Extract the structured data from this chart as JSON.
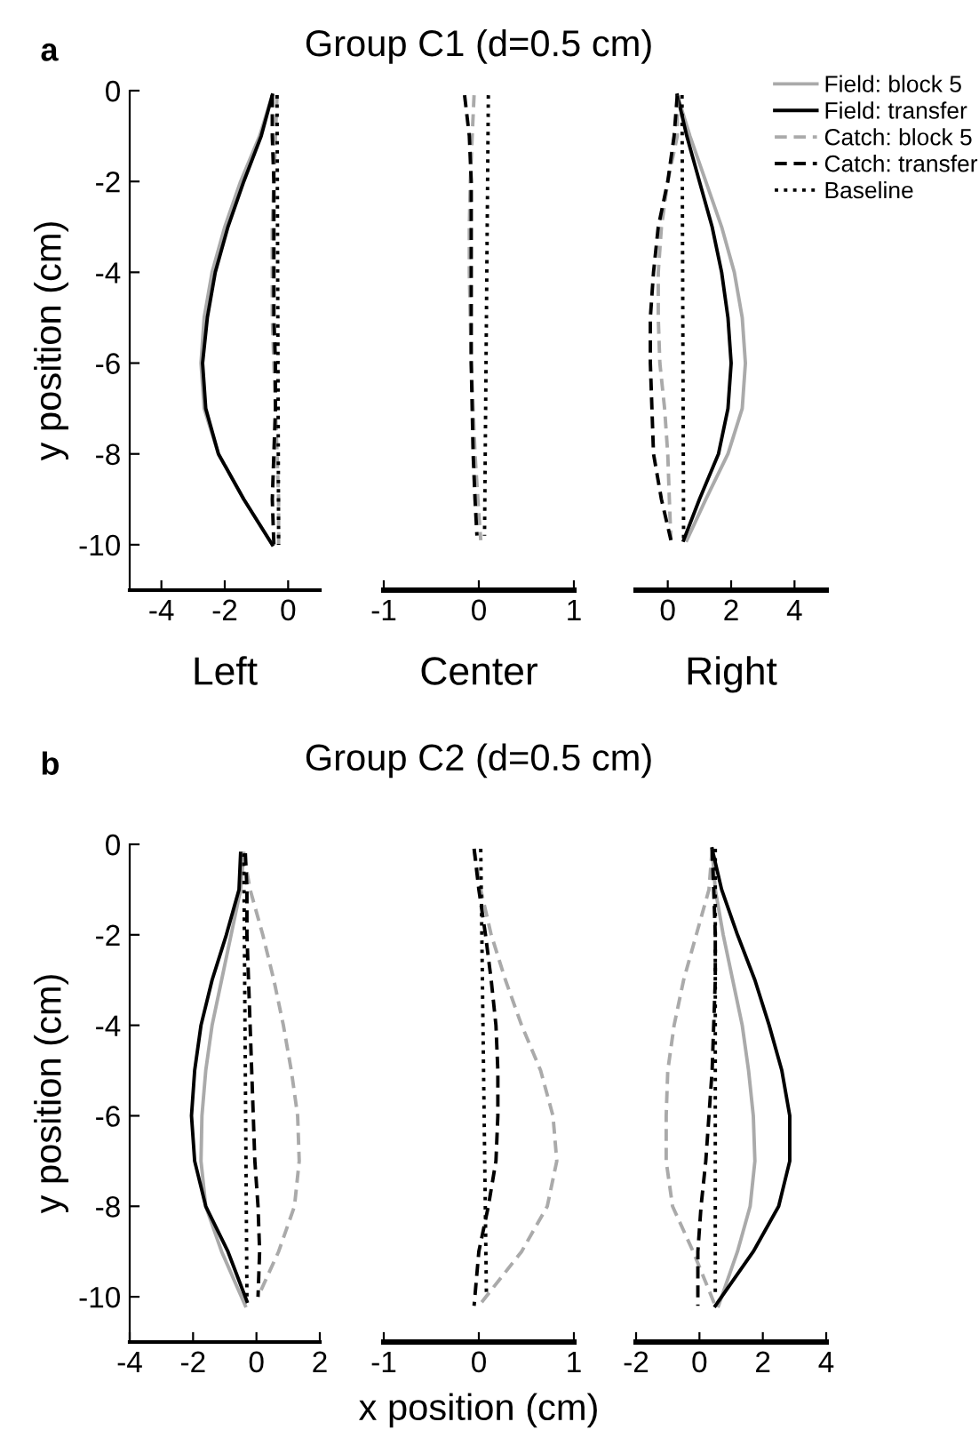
{
  "chart_data": [
    {
      "type": "line",
      "xlabel": "Left",
      "ylabel": "y position (cm)",
      "annotations": [
        "a"
      ],
      "xlim": [
        -5,
        1
      ],
      "xticks": [
        -4,
        -2,
        0
      ],
      "ylim": [
        -11,
        0
      ],
      "yticks": [
        0,
        -2,
        -4,
        -6,
        -8,
        -10
      ],
      "grid": false,
      "legend": false,
      "marker": "none",
      "series": [
        {
          "color": "#aaaaaa",
          "line_style": "solid",
          "x": [
            -0.5,
            -0.9,
            -1.5,
            -2.0,
            -2.4,
            -2.65,
            -2.75,
            -2.65,
            -2.2,
            -1.4,
            -0.5
          ],
          "values": [
            -0.1,
            -1,
            -2,
            -3,
            -4,
            -5,
            -6,
            -7,
            -8,
            -9,
            -10
          ]
        },
        {
          "color": "#000000",
          "line_style": "solid",
          "x": [
            -0.5,
            -0.85,
            -1.4,
            -1.9,
            -2.3,
            -2.55,
            -2.7,
            -2.6,
            -2.2,
            -1.4,
            -0.5
          ],
          "values": [
            -0.1,
            -1,
            -2,
            -3,
            -4,
            -5,
            -6,
            -7,
            -8,
            -9,
            -10
          ]
        },
        {
          "color": "#aaaaaa",
          "line_style": "dashed",
          "x": [
            -0.35,
            -0.4,
            -0.45,
            -0.5,
            -0.5,
            -0.5,
            -0.45,
            -0.4,
            -0.35,
            -0.3,
            -0.3
          ],
          "values": [
            -0.1,
            -1,
            -2,
            -3,
            -4,
            -5,
            -6,
            -7,
            -8,
            -9,
            -10
          ]
        },
        {
          "color": "#000000",
          "line_style": "dashed",
          "x": [
            -0.5,
            -0.5,
            -0.45,
            -0.45,
            -0.45,
            -0.45,
            -0.4,
            -0.4,
            -0.45,
            -0.5,
            -0.45
          ],
          "values": [
            -0.1,
            -1,
            -2,
            -3,
            -4,
            -5,
            -6,
            -7,
            -8,
            -9,
            -10
          ]
        },
        {
          "color": "#000000",
          "line_style": "dotted",
          "x": [
            -0.35,
            -0.3
          ],
          "values": [
            -0.1,
            -10
          ]
        }
      ]
    },
    {
      "type": "line",
      "title": "Group C1 (d=0.5 cm)",
      "xlabel": "Center",
      "xlim": [
        -1,
        1
      ],
      "xticks": [
        -1,
        0,
        1
      ],
      "ylim": [
        -11,
        0
      ],
      "tick_labels": "x",
      "grid": false,
      "legend": false,
      "marker": "none",
      "series": [
        {
          "color": "#aaaaaa",
          "line_style": "dashed",
          "x": [
            -0.05,
            -0.07,
            -0.09,
            -0.1,
            -0.1,
            -0.09,
            -0.08,
            -0.06,
            -0.04,
            -0.01,
            0.02
          ],
          "values": [
            -0.1,
            -1,
            -2,
            -3,
            -4,
            -5,
            -6,
            -7,
            -8,
            -9,
            -9.9
          ]
        },
        {
          "color": "#000000",
          "line_style": "dashed",
          "x": [
            -0.15,
            -0.1,
            -0.08,
            -0.08,
            -0.08,
            -0.08,
            -0.08,
            -0.07,
            -0.06,
            -0.04,
            -0.02
          ],
          "values": [
            -0.1,
            -1,
            -2,
            -3,
            -4,
            -5,
            -6,
            -7,
            -8,
            -9,
            -9.8
          ]
        },
        {
          "color": "#000000",
          "line_style": "dotted",
          "x": [
            0.1,
            0.06
          ],
          "values": [
            -0.1,
            -9.8
          ]
        }
      ]
    },
    {
      "type": "line",
      "xlabel": "Right",
      "xlim": [
        -1,
        5
      ],
      "xticks": [
        0,
        2,
        4
      ],
      "ylim": [
        -11,
        0
      ],
      "tick_labels": "x",
      "grid": false,
      "legend": "top right",
      "marker": "none",
      "series": [
        {
          "name": "Field: block 5",
          "color": "#aaaaaa",
          "line_style": "solid",
          "x": [
            0.3,
            0.7,
            1.2,
            1.7,
            2.1,
            2.35,
            2.45,
            2.35,
            1.9,
            1.2,
            0.6
          ],
          "values": [
            -0.1,
            -1,
            -2,
            -3,
            -4,
            -5,
            -6,
            -7,
            -8,
            -9,
            -9.9
          ]
        },
        {
          "name": "Field: transfer",
          "color": "#000000",
          "line_style": "solid",
          "x": [
            0.3,
            0.6,
            1.0,
            1.4,
            1.7,
            1.9,
            2.0,
            1.9,
            1.6,
            1.0,
            0.5
          ],
          "values": [
            -0.1,
            -1,
            -2,
            -3,
            -4,
            -5,
            -6,
            -7,
            -8,
            -9,
            -9.9
          ]
        },
        {
          "name": "Catch: block 5",
          "color": "#aaaaaa",
          "line_style": "dashed",
          "x": [
            0.3,
            0.3,
            0.0,
            -0.2,
            -0.3,
            -0.3,
            -0.25,
            -0.1,
            0.0,
            0.05,
            0.1
          ],
          "values": [
            -0.1,
            -1,
            -2,
            -3,
            -4,
            -5,
            -6,
            -7,
            -8,
            -9,
            -9.9
          ]
        },
        {
          "name": "Catch: transfer",
          "color": "#000000",
          "line_style": "dashed",
          "x": [
            0.3,
            0.2,
            0.0,
            -0.3,
            -0.45,
            -0.55,
            -0.55,
            -0.5,
            -0.45,
            -0.2,
            0.1
          ],
          "values": [
            -0.1,
            -1,
            -2,
            -3,
            -4,
            -5,
            -6,
            -7,
            -8,
            -9,
            -9.9
          ]
        },
        {
          "name": "Baseline",
          "color": "#000000",
          "line_style": "dotted",
          "x": [
            0.45,
            0.5
          ],
          "values": [
            -0.1,
            -9.9
          ]
        }
      ]
    },
    {
      "type": "line",
      "ylabel": "y position (cm)",
      "annotations": [
        "b"
      ],
      "xlim": [
        -4,
        2
      ],
      "xticks": [
        -4,
        -2,
        0,
        2
      ],
      "ylim": [
        -11,
        0
      ],
      "yticks": [
        0,
        -2,
        -4,
        -6,
        -8,
        -10
      ],
      "grid": false,
      "legend": false,
      "marker": "none",
      "series": [
        {
          "color": "#aaaaaa",
          "line_style": "solid",
          "x": [
            -0.4,
            -0.5,
            -0.8,
            -1.1,
            -1.4,
            -1.6,
            -1.72,
            -1.75,
            -1.6,
            -1.1,
            -0.35
          ],
          "values": [
            -0.2,
            -1,
            -2,
            -3,
            -4,
            -5,
            -6,
            -7,
            -8,
            -9,
            -10.2
          ]
        },
        {
          "color": "#000000",
          "line_style": "solid",
          "x": [
            -0.5,
            -0.55,
            -0.95,
            -1.4,
            -1.75,
            -1.95,
            -2.05,
            -1.95,
            -1.6,
            -0.9,
            -0.3
          ],
          "values": [
            -0.2,
            -1,
            -2,
            -3,
            -4,
            -5,
            -6,
            -7,
            -8,
            -9,
            -10.1
          ]
        },
        {
          "color": "#aaaaaa",
          "line_style": "dashed",
          "x": [
            -0.4,
            -0.2,
            0.2,
            0.55,
            0.85,
            1.1,
            1.3,
            1.35,
            1.2,
            0.7,
            0.05
          ],
          "values": [
            -0.2,
            -1,
            -2,
            -3,
            -4,
            -5,
            -6,
            -7,
            -8,
            -9,
            -10
          ]
        },
        {
          "color": "#000000",
          "line_style": "dashed",
          "x": [
            -0.35,
            -0.3,
            -0.3,
            -0.25,
            -0.2,
            -0.15,
            -0.1,
            -0.05,
            0.05,
            0.1,
            0.05
          ],
          "values": [
            -0.2,
            -1,
            -2,
            -3,
            -4,
            -5,
            -6,
            -7,
            -8,
            -9,
            -10
          ]
        },
        {
          "color": "#000000",
          "line_style": "dotted",
          "x": [
            -0.4,
            -0.3
          ],
          "values": [
            -0.2,
            -10
          ]
        }
      ]
    },
    {
      "type": "line",
      "title": "Group C2 (d=0.5 cm)",
      "xlabel": "x position (cm)",
      "xlim": [
        -1,
        1
      ],
      "xticks": [
        -1,
        0,
        1
      ],
      "ylim": [
        -11,
        0
      ],
      "tick_labels": "x",
      "grid": false,
      "legend": false,
      "marker": "none",
      "series": [
        {
          "color": "#aaaaaa",
          "line_style": "dashed",
          "x": [
            -0.05,
            0.02,
            0.13,
            0.28,
            0.45,
            0.65,
            0.78,
            0.82,
            0.72,
            0.45,
            0.0
          ],
          "values": [
            -0.1,
            -1,
            -2,
            -3,
            -4,
            -5,
            -6,
            -7,
            -8,
            -9,
            -10.2
          ]
        },
        {
          "color": "#000000",
          "line_style": "dashed",
          "x": [
            -0.05,
            0.0,
            0.07,
            0.13,
            0.18,
            0.2,
            0.2,
            0.18,
            0.1,
            0.0,
            -0.05
          ],
          "values": [
            -0.1,
            -1,
            -2,
            -3,
            -4,
            -5,
            -6,
            -7,
            -8,
            -9,
            -10.2
          ]
        },
        {
          "color": "#000000",
          "line_style": "dotted",
          "x": [
            0.02,
            0.08
          ],
          "values": [
            -0.1,
            -10
          ]
        }
      ]
    },
    {
      "type": "line",
      "xlim": [
        -2,
        4
      ],
      "xticks": [
        -2,
        0,
        2,
        4
      ],
      "ylim": [
        -11,
        0
      ],
      "tick_labels": "x",
      "grid": false,
      "legend": false,
      "marker": "none",
      "series": [
        {
          "color": "#aaaaaa",
          "line_style": "solid",
          "x": [
            0.4,
            0.5,
            0.75,
            1.05,
            1.35,
            1.55,
            1.7,
            1.75,
            1.6,
            1.2,
            0.6
          ],
          "values": [
            -0.1,
            -1,
            -2,
            -3,
            -4,
            -5,
            -6,
            -7,
            -8,
            -9,
            -10.2
          ]
        },
        {
          "color": "#000000",
          "line_style": "solid",
          "x": [
            0.4,
            0.7,
            1.2,
            1.75,
            2.2,
            2.6,
            2.85,
            2.85,
            2.5,
            1.7,
            0.5
          ],
          "values": [
            -0.1,
            -1,
            -2,
            -3,
            -4,
            -5,
            -6,
            -7,
            -8,
            -9,
            -10.2
          ]
        },
        {
          "color": "#aaaaaa",
          "line_style": "dashed",
          "x": [
            0.4,
            0.3,
            -0.1,
            -0.5,
            -0.8,
            -1.0,
            -1.05,
            -1.05,
            -0.85,
            -0.2,
            0.5
          ],
          "values": [
            -0.1,
            -1,
            -2,
            -3,
            -4,
            -5,
            -6,
            -7,
            -8,
            -9,
            -10.2
          ]
        },
        {
          "color": "#000000",
          "line_style": "dashed",
          "x": [
            0.4,
            0.45,
            0.5,
            0.5,
            0.45,
            0.4,
            0.3,
            0.2,
            0.05,
            -0.05,
            -0.05
          ],
          "values": [
            -0.1,
            -1,
            -2,
            -3,
            -4,
            -5,
            -6,
            -7,
            -8,
            -9,
            -10.2
          ]
        },
        {
          "color": "#000000",
          "line_style": "dotted",
          "x": [
            0.5,
            0.5
          ],
          "values": [
            -0.1,
            -10
          ]
        }
      ]
    }
  ]
}
